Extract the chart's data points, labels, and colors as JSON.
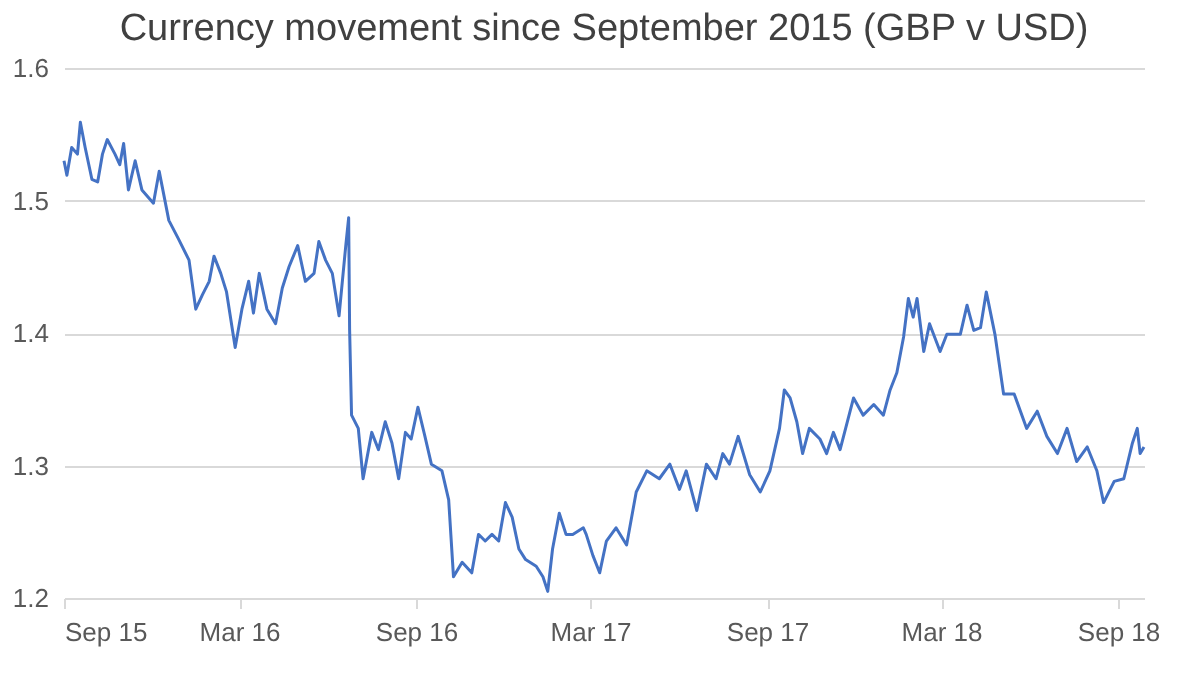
{
  "chart_data": {
    "type": "line",
    "title": "Currency movement since September 2015 (GBP v USD)",
    "x": [
      "2015-09-01",
      "2015-09-04",
      "2015-09-09",
      "2015-09-15",
      "2015-09-18",
      "2015-09-23",
      "2015-09-30",
      "2015-10-06",
      "2015-10-11",
      "2015-10-16",
      "2015-10-24",
      "2015-10-29",
      "2015-11-02",
      "2015-11-07",
      "2015-11-14",
      "2015-11-21",
      "2015-12-03",
      "2015-12-09",
      "2015-12-19",
      "2015-12-29",
      "2016-01-09",
      "2016-01-16",
      "2016-01-23",
      "2016-01-30",
      "2016-02-04",
      "2016-02-11",
      "2016-02-17",
      "2016-02-26",
      "2016-03-04",
      "2016-03-11",
      "2016-03-16",
      "2016-03-22",
      "2016-03-30",
      "2016-04-08",
      "2016-04-15",
      "2016-04-22",
      "2016-05-01",
      "2016-05-09",
      "2016-05-18",
      "2016-05-23",
      "2016-05-30",
      "2016-06-06",
      "2016-06-13",
      "2016-06-20",
      "2016-06-23",
      "2016-06-24",
      "2016-06-26",
      "2016-07-03",
      "2016-07-08",
      "2016-07-17",
      "2016-07-24",
      "2016-07-31",
      "2016-08-07",
      "2016-08-14",
      "2016-08-21",
      "2016-08-27",
      "2016-09-03",
      "2016-09-10",
      "2016-09-17",
      "2016-09-28",
      "2016-10-05",
      "2016-10-10",
      "2016-10-19",
      "2016-10-29",
      "2016-11-05",
      "2016-11-12",
      "2016-11-19",
      "2016-11-26",
      "2016-12-03",
      "2016-12-10",
      "2016-12-17",
      "2016-12-24",
      "2017-01-04",
      "2017-01-11",
      "2017-01-16",
      "2017-01-21",
      "2017-01-28",
      "2017-02-04",
      "2017-02-11",
      "2017-02-22",
      "2017-02-25",
      "2017-03-04",
      "2017-03-11",
      "2017-03-18",
      "2017-03-28",
      "2017-04-08",
      "2017-04-18",
      "2017-04-29",
      "2017-05-12",
      "2017-05-23",
      "2017-06-02",
      "2017-06-09",
      "2017-06-20",
      "2017-06-30",
      "2017-07-10",
      "2017-07-17",
      "2017-07-24",
      "2017-08-02",
      "2017-08-14",
      "2017-08-25",
      "2017-09-04",
      "2017-09-14",
      "2017-09-19",
      "2017-09-25",
      "2017-10-02",
      "2017-10-08",
      "2017-10-15",
      "2017-10-26",
      "2017-11-02",
      "2017-11-09",
      "2017-11-16",
      "2017-11-30",
      "2017-12-10",
      "2017-12-21",
      "2017-12-31",
      "2018-01-07",
      "2018-01-14",
      "2018-01-21",
      "2018-01-26",
      "2018-01-31",
      "2018-02-04",
      "2018-02-11",
      "2018-02-17",
      "2018-02-28",
      "2018-03-07",
      "2018-03-21",
      "2018-03-28",
      "2018-04-04",
      "2018-04-11",
      "2018-04-17",
      "2018-04-26",
      "2018-05-05",
      "2018-05-16",
      "2018-05-29",
      "2018-06-09",
      "2018-06-19",
      "2018-06-30",
      "2018-07-10",
      "2018-07-20",
      "2018-07-31",
      "2018-08-10",
      "2018-08-17",
      "2018-08-28",
      "2018-09-07",
      "2018-09-16",
      "2018-09-21",
      "2018-09-24",
      "2018-09-28"
    ],
    "series": [
      {
        "color": "#4472c4",
        "values": [
          1.53,
          1.519,
          1.54,
          1.535,
          1.559,
          1.54,
          1.516,
          1.514,
          1.535,
          1.546,
          1.535,
          1.527,
          1.543,
          1.508,
          1.53,
          1.508,
          1.498,
          1.522,
          1.485,
          1.471,
          1.455,
          1.418,
          1.429,
          1.439,
          1.458,
          1.445,
          1.431,
          1.389,
          1.418,
          1.439,
          1.415,
          1.445,
          1.418,
          1.407,
          1.434,
          1.45,
          1.466,
          1.439,
          1.445,
          1.469,
          1.455,
          1.445,
          1.413,
          1.466,
          1.487,
          1.402,
          1.338,
          1.328,
          1.29,
          1.325,
          1.312,
          1.333,
          1.317,
          1.29,
          1.325,
          1.32,
          1.344,
          1.323,
          1.301,
          1.296,
          1.274,
          1.216,
          1.227,
          1.219,
          1.248,
          1.243,
          1.248,
          1.243,
          1.272,
          1.261,
          1.237,
          1.229,
          1.224,
          1.216,
          1.205,
          1.237,
          1.264,
          1.248,
          1.248,
          1.253,
          1.248,
          1.232,
          1.219,
          1.243,
          1.253,
          1.24,
          1.28,
          1.296,
          1.29,
          1.301,
          1.282,
          1.296,
          1.266,
          1.301,
          1.29,
          1.309,
          1.301,
          1.322,
          1.293,
          1.28,
          1.296,
          1.328,
          1.357,
          1.351,
          1.333,
          1.309,
          1.328,
          1.32,
          1.309,
          1.325,
          1.312,
          1.351,
          1.338,
          1.346,
          1.338,
          1.357,
          1.37,
          1.397,
          1.426,
          1.412,
          1.426,
          1.386,
          1.407,
          1.386,
          1.399,
          1.399,
          1.421,
          1.402,
          1.404,
          1.431,
          1.399,
          1.354,
          1.354,
          1.328,
          1.341,
          1.322,
          1.309,
          1.328,
          1.303,
          1.314,
          1.296,
          1.272,
          1.288,
          1.29,
          1.317,
          1.328,
          1.309,
          1.314
        ]
      }
    ],
    "xlim": [
      "2015-09-01",
      "2018-09-28"
    ],
    "xticks": [
      {
        "value": "2015-09-01",
        "label": "Sep 15"
      },
      {
        "value": "2016-03-01",
        "label": "Mar 16"
      },
      {
        "value": "2016-09-01",
        "label": "Sep 16"
      },
      {
        "value": "2017-03-01",
        "label": "Mar 17"
      },
      {
        "value": "2017-09-01",
        "label": "Sep 17"
      },
      {
        "value": "2018-03-01",
        "label": "Mar 18"
      },
      {
        "value": "2018-09-01",
        "label": "Sep 18"
      }
    ],
    "ylim": [
      1.2,
      1.6
    ],
    "yticks": [
      1.2,
      1.3,
      1.4,
      1.5,
      1.6
    ],
    "grid": "y",
    "legend": false,
    "marker": "none",
    "line_style": "solid"
  }
}
